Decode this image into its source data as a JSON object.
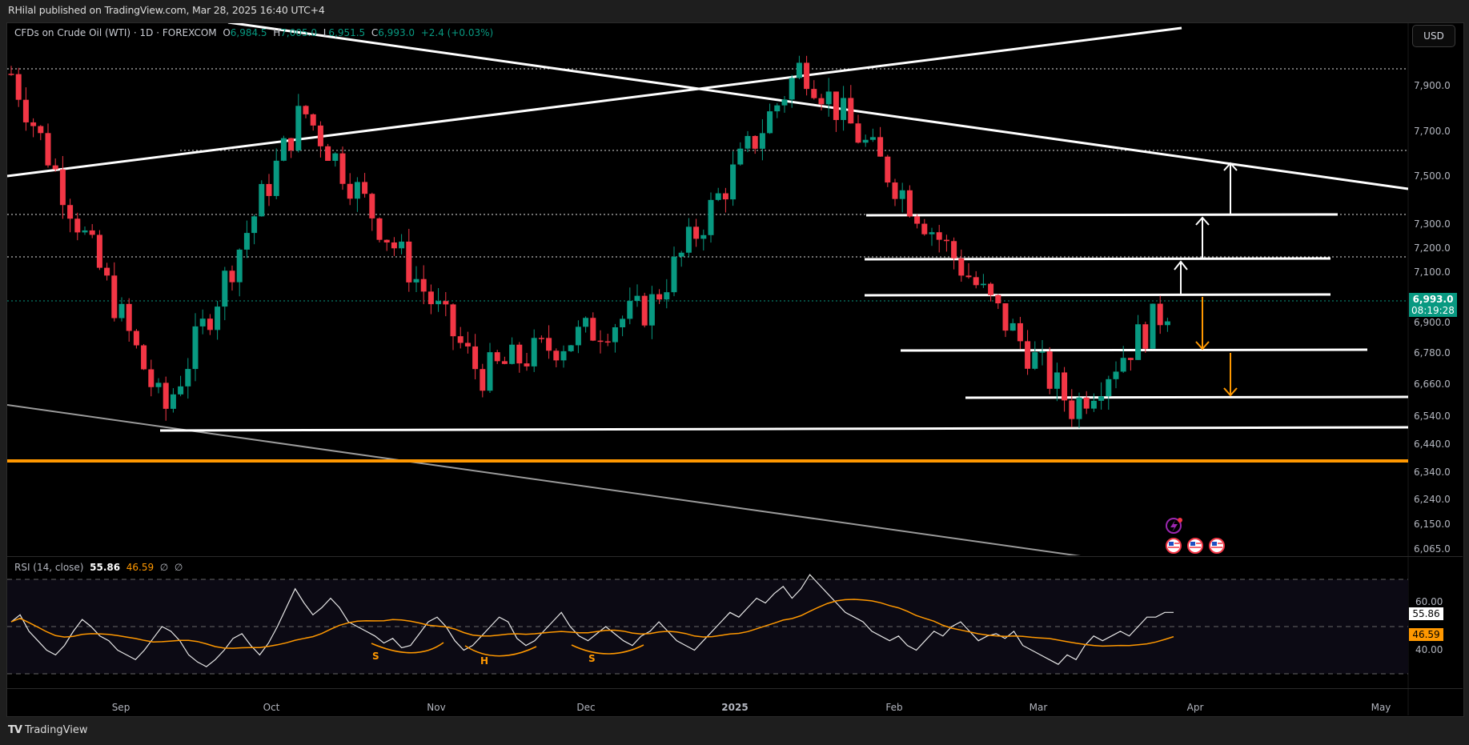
{
  "header": {
    "published": "RHilal published on TradingView.com, Mar 28, 2025 16:40 UTC+4"
  },
  "legend": {
    "symbol": "CFDs on Crude Oil (WTI) · 1D · FOREXCOM",
    "o_label": "O",
    "o": "6,984.5",
    "h_label": "H",
    "h": "7,005.0",
    "l_label": "L",
    "l": "6,951.5",
    "c_label": "C",
    "c": "6,993.0",
    "change": "+2.4 (+0.03%)"
  },
  "currency_button": "USD",
  "price_axis": {
    "labels": [
      "7,900.0",
      "7,700.0",
      "7,500.0",
      "7,300.0",
      "7,200.0",
      "7,100.0",
      "6,900.0",
      "6,780.0",
      "6,660.0",
      "6,540.0",
      "6,440.0",
      "6,340.0",
      "6,240.0",
      "6,150.0",
      "6,065.0"
    ],
    "last_price": "6,993.0",
    "countdown": "08:19:28"
  },
  "rsi": {
    "name": "RSI (14, close)",
    "value": "55.86",
    "ma_value": "46.59",
    "na1": "∅",
    "na2": "∅",
    "axis_labels": [
      "60.00",
      "40.00"
    ],
    "pattern_labels": [
      "S",
      "H",
      "S"
    ]
  },
  "time_axis": {
    "labels": [
      "Sep",
      "Oct",
      "Nov",
      "Dec",
      "2025",
      "Feb",
      "Mar",
      "Apr",
      "May"
    ]
  },
  "footer": {
    "brand": "TradingView",
    "logo": "TV"
  },
  "colors": {
    "up": "#089981",
    "down": "#f23645",
    "accent_orange": "#ff9800",
    "background": "#000000",
    "frame": "#1e1e1e"
  },
  "icons": [
    "lightning-event-icon",
    "us-flag-event-icon",
    "us-flag-event-icon",
    "us-flag-event-icon"
  ],
  "chart_data": [
    {
      "type": "candlestick",
      "title": "CFDs on Crude Oil (WTI) · 1D · FOREXCOM",
      "xlabel": "",
      "ylabel": "USD",
      "x_ticks": [
        "Sep",
        "Oct",
        "Nov",
        "Dec",
        "2025",
        "Feb",
        "Mar",
        "Apr",
        "May"
      ],
      "ylim": [
        6030,
        8050
      ],
      "y_ticks": [
        7900,
        7700,
        7500,
        7300,
        7200,
        7100,
        6900,
        6780,
        6660,
        6540,
        6440,
        6340,
        6240,
        6150,
        6065
      ],
      "last": {
        "open": 6984.5,
        "high": 7005.0,
        "low": 6951.5,
        "close": 6993.0,
        "change": 2.4,
        "change_pct": 0.03
      },
      "approx_swing_points": [
        {
          "date": "late Aug",
          "price": 7950
        },
        {
          "date": "early Sep",
          "price": 6520
        },
        {
          "date": "early Oct",
          "price": 7800
        },
        {
          "date": "mid Nov",
          "price": 6680
        },
        {
          "date": "mid Dec",
          "price": 6960
        },
        {
          "date": "mid Jan",
          "price": 7990
        },
        {
          "date": "early Mar",
          "price": 6540
        },
        {
          "date": "Mar 28",
          "price": 6993
        }
      ],
      "horizontal_levels": [
        {
          "price": 7340,
          "style": "solid-white"
        },
        {
          "price": 7160,
          "style": "solid-white"
        },
        {
          "price": 7000,
          "style": "solid-white"
        },
        {
          "price": 6780,
          "style": "solid-white"
        },
        {
          "price": 6600,
          "style": "solid-white"
        },
        {
          "price": 6480,
          "style": "solid-white"
        },
        {
          "price": 6380,
          "style": "solid-orange"
        }
      ],
      "dotted_levels": [
        7990,
        7620,
        7340,
        7160,
        6993
      ],
      "trendlines": [
        {
          "name": "rising resistance",
          "from": {
            "x": "Aug",
            "price": 7500
          },
          "to": {
            "x": "Mar",
            "price": 8230
          }
        },
        {
          "name": "falling resistance",
          "from": {
            "x": "Aug",
            "price": 8230
          },
          "to": {
            "x": "May",
            "price": 7460
          }
        },
        {
          "name": "falling support",
          "from": {
            "x": "Aug",
            "price": 6590
          },
          "to": {
            "x": "Mar",
            "price": 6040
          }
        }
      ],
      "arrows": [
        {
          "dir": "up",
          "from": 7000,
          "to": 7160,
          "color": "white"
        },
        {
          "dir": "up",
          "from": 7160,
          "to": 7340,
          "color": "white"
        },
        {
          "dir": "up",
          "from": 7340,
          "to": 7560,
          "color": "white"
        },
        {
          "dir": "down",
          "from": 7000,
          "to": 6780,
          "color": "orange"
        },
        {
          "dir": "down",
          "from": 6770,
          "to": 6600,
          "color": "orange"
        }
      ]
    },
    {
      "type": "line",
      "title": "RSI (14, close)",
      "series": [
        {
          "name": "RSI",
          "last": 55.86,
          "color": "#ffffff"
        },
        {
          "name": "RSI-based MA",
          "last": 46.59,
          "color": "#ff9800"
        }
      ],
      "ylim": [
        25,
        75
      ],
      "bands": [
        70,
        50,
        30
      ],
      "annotations": [
        "S",
        "H",
        "S"
      ]
    }
  ]
}
